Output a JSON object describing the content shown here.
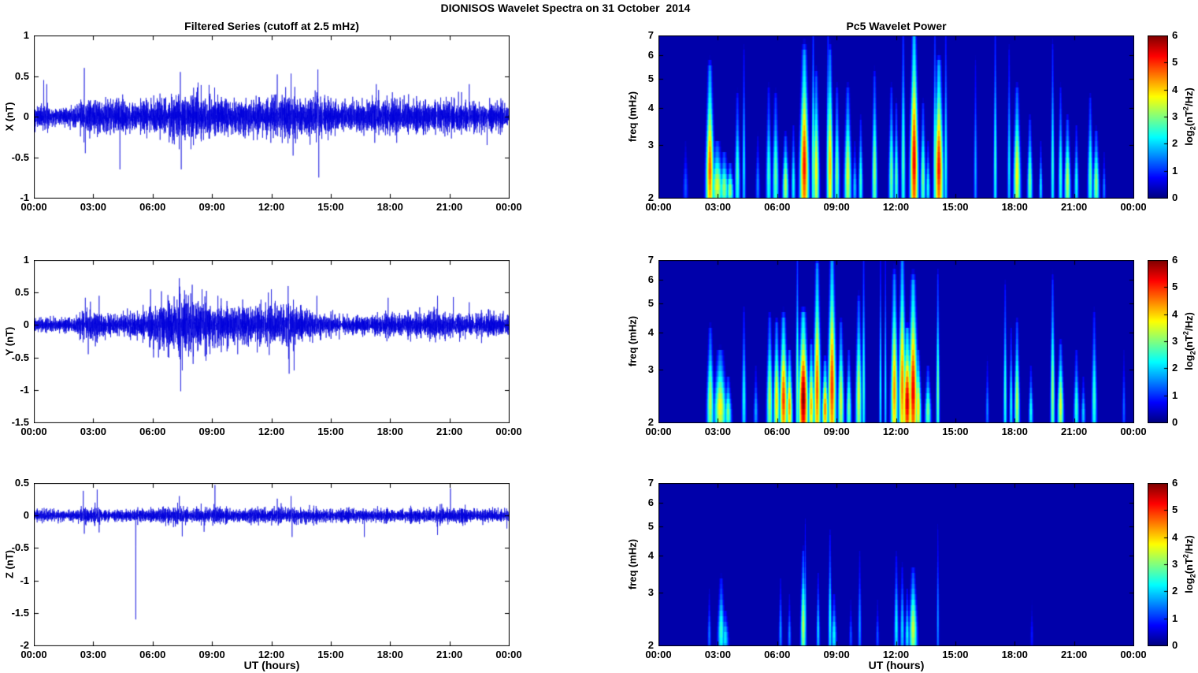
{
  "figure": {
    "title": "DIONISOS Wavelet Spectra on 31 October  2014"
  },
  "titles": {
    "left_column": "Filtered Series (cutoff at 2.5 mHz)",
    "right_column": "Pc5 Wavelet Power"
  },
  "axes": {
    "xlabel": "UT (hours)",
    "x_tick_labels": [
      "00:00",
      "03:00",
      "06:00",
      "09:00",
      "12:00",
      "15:00",
      "18:00",
      "21:00",
      "00:00"
    ],
    "x_tick_hours": [
      0,
      3,
      6,
      9,
      12,
      15,
      18,
      21,
      24
    ],
    "x_range_hours": [
      0,
      24
    ]
  },
  "colorbar": {
    "colormap": "jet",
    "tick_labels": [
      "6",
      "5",
      "4",
      "3",
      "2",
      "1",
      "0"
    ],
    "tick_values": [
      6,
      5,
      4,
      3,
      2,
      1,
      0
    ],
    "range": [
      0,
      6
    ],
    "label_parts": {
      "pre": "log",
      "sub": "2",
      "mid": "(nT",
      "sup": "2",
      "post": "/Hz)"
    }
  },
  "chart_data": {
    "x_series": {
      "type": "line",
      "ylabel": "X (nT)",
      "ylim": [
        -1,
        1
      ],
      "ytick_labels": [
        "1",
        "0.5",
        "0",
        "-0.5",
        "-1"
      ],
      "ytick_values": [
        1,
        0.5,
        0,
        -0.5,
        -1
      ],
      "line_color": "#0000DC",
      "seed": 101,
      "envelope_fields": [
        "hour",
        "typical_amplitude_nT"
      ],
      "envelope": [
        [
          0,
          0.09
        ],
        [
          0.5,
          0.12
        ],
        [
          1,
          0.08
        ],
        [
          2,
          0.08
        ],
        [
          2.4,
          0.16
        ],
        [
          3,
          0.15
        ],
        [
          3.5,
          0.14
        ],
        [
          4.3,
          0.14
        ],
        [
          5,
          0.12
        ],
        [
          5.6,
          0.14
        ],
        [
          6.5,
          0.16
        ],
        [
          7.1,
          0.19
        ],
        [
          7.5,
          0.2
        ],
        [
          8,
          0.17
        ],
        [
          9,
          0.17
        ],
        [
          9.7,
          0.15
        ],
        [
          10.5,
          0.15
        ],
        [
          11.3,
          0.16
        ],
        [
          12,
          0.16
        ],
        [
          12.7,
          0.19
        ],
        [
          13.2,
          0.18
        ],
        [
          13.8,
          0.15
        ],
        [
          14.3,
          0.19
        ],
        [
          15,
          0.13
        ],
        [
          16,
          0.12
        ],
        [
          17,
          0.15
        ],
        [
          17.8,
          0.16
        ],
        [
          18.5,
          0.14
        ],
        [
          19.5,
          0.13
        ],
        [
          20.5,
          0.14
        ],
        [
          21.5,
          0.13
        ],
        [
          22.5,
          0.13
        ],
        [
          23.5,
          0.12
        ],
        [
          24,
          0.12
        ]
      ],
      "spike_fields": [
        "hour",
        "value_nT"
      ],
      "spikes": [
        [
          0.5,
          0.45
        ],
        [
          0.65,
          0.4
        ],
        [
          2.55,
          0.6
        ],
        [
          2.6,
          -0.45
        ],
        [
          4.35,
          -0.65
        ],
        [
          7.4,
          0.55
        ],
        [
          7.45,
          -0.65
        ],
        [
          8.3,
          0.42
        ],
        [
          12.3,
          0.52
        ],
        [
          13.0,
          0.53
        ],
        [
          13.1,
          -0.48
        ],
        [
          14.35,
          0.58
        ],
        [
          14.4,
          -0.75
        ],
        [
          17.3,
          0.4
        ],
        [
          22.0,
          0.4
        ],
        [
          22.9,
          -0.35
        ]
      ]
    },
    "y_series": {
      "type": "line",
      "ylabel": "Y (nT)",
      "ylim": [
        -1.5,
        1
      ],
      "ytick_labels": [
        "1",
        "0.5",
        "0",
        "-0.5",
        "-1",
        "-1.5"
      ],
      "ytick_values": [
        1,
        0.5,
        0,
        -0.5,
        -1,
        -1.5
      ],
      "line_color": "#0000DC",
      "seed": 202,
      "envelope": [
        [
          0,
          0.07
        ],
        [
          2,
          0.07
        ],
        [
          2.5,
          0.16
        ],
        [
          3.2,
          0.17
        ],
        [
          3.8,
          0.12
        ],
        [
          4.5,
          0.12
        ],
        [
          5.2,
          0.15
        ],
        [
          5.8,
          0.18
        ],
        [
          6.3,
          0.23
        ],
        [
          7,
          0.27
        ],
        [
          7.4,
          0.3
        ],
        [
          8,
          0.28
        ],
        [
          8.6,
          0.24
        ],
        [
          9.3,
          0.21
        ],
        [
          10,
          0.2
        ],
        [
          11,
          0.19
        ],
        [
          11.8,
          0.21
        ],
        [
          12.5,
          0.23
        ],
        [
          13,
          0.24
        ],
        [
          13.5,
          0.16
        ],
        [
          14.2,
          0.14
        ],
        [
          15,
          0.1
        ],
        [
          16,
          0.09
        ],
        [
          17,
          0.1
        ],
        [
          17.8,
          0.14
        ],
        [
          18.5,
          0.11
        ],
        [
          19.5,
          0.13
        ],
        [
          20.3,
          0.15
        ],
        [
          21,
          0.14
        ],
        [
          21.8,
          0.13
        ],
        [
          23,
          0.12
        ],
        [
          24,
          0.12
        ]
      ],
      "spikes": [
        [
          2.6,
          0.42
        ],
        [
          2.75,
          -0.45
        ],
        [
          3.3,
          0.45
        ],
        [
          5.9,
          0.55
        ],
        [
          6.05,
          -0.5
        ],
        [
          6.3,
          -0.5
        ],
        [
          6.45,
          0.52
        ],
        [
          7.35,
          0.72
        ],
        [
          7.42,
          -1.02
        ],
        [
          7.5,
          -0.7
        ],
        [
          8.0,
          0.62
        ],
        [
          8.05,
          -0.6
        ],
        [
          8.5,
          0.55
        ],
        [
          8.7,
          -0.55
        ],
        [
          9.3,
          0.45
        ],
        [
          10.3,
          -0.45
        ],
        [
          11.85,
          0.5
        ],
        [
          12.0,
          0.55
        ],
        [
          12.85,
          0.6
        ],
        [
          12.9,
          -0.75
        ],
        [
          13.15,
          -0.7
        ],
        [
          14.3,
          0.45
        ],
        [
          17.9,
          0.42
        ],
        [
          20.4,
          0.45
        ],
        [
          21.2,
          0.43
        ],
        [
          22.0,
          0.35
        ]
      ]
    },
    "z_series": {
      "type": "line",
      "ylabel": "Z (nT)",
      "ylim": [
        -2,
        0.5
      ],
      "ytick_labels": [
        "0.5",
        "0",
        "-0.5",
        "-1",
        "-1.5",
        "-2"
      ],
      "ytick_values": [
        0.5,
        0,
        -0.5,
        -1,
        -1.5,
        -2
      ],
      "line_color": "#0000DC",
      "seed": 303,
      "envelope": [
        [
          0,
          0.06
        ],
        [
          2.3,
          0.06
        ],
        [
          2.5,
          0.1
        ],
        [
          2.8,
          0.07
        ],
        [
          3.1,
          0.09
        ],
        [
          3.5,
          0.07
        ],
        [
          5,
          0.06
        ],
        [
          6,
          0.07
        ],
        [
          7.2,
          0.1
        ],
        [
          7.6,
          0.09
        ],
        [
          8,
          0.07
        ],
        [
          8.8,
          0.09
        ],
        [
          9.3,
          0.09
        ],
        [
          10,
          0.07
        ],
        [
          12,
          0.08
        ],
        [
          13,
          0.1
        ],
        [
          13.5,
          0.08
        ],
        [
          15,
          0.07
        ],
        [
          17,
          0.07
        ],
        [
          19,
          0.08
        ],
        [
          20.5,
          0.08
        ],
        [
          22,
          0.07
        ],
        [
          24,
          0.07
        ]
      ],
      "spikes": [
        [
          2.5,
          0.38
        ],
        [
          2.55,
          -0.28
        ],
        [
          3.2,
          0.4
        ],
        [
          3.3,
          -0.26
        ],
        [
          5.15,
          -1.6
        ],
        [
          7.35,
          0.3
        ],
        [
          7.5,
          -0.32
        ],
        [
          8.6,
          -0.25
        ],
        [
          9.15,
          0.47
        ],
        [
          12.3,
          0.26
        ],
        [
          13.0,
          0.3
        ],
        [
          13.05,
          -0.33
        ],
        [
          16.7,
          -0.33
        ],
        [
          20.4,
          -0.3
        ],
        [
          21.05,
          0.42
        ],
        [
          23.9,
          -0.2
        ]
      ]
    },
    "x_wavelet": {
      "type": "heatmap",
      "ylabel": "freq (mHz)",
      "yscale": "log",
      "ylim_mHz": [
        2,
        7
      ],
      "ytick_labels": [
        "7",
        "6",
        "5",
        "4",
        "3",
        "2"
      ],
      "ytick_values": [
        7,
        6,
        5,
        4,
        3,
        2
      ],
      "power_range_log2": [
        0,
        6
      ],
      "background_floor_log2": 0.25,
      "plume_fields": [
        "hour",
        "freq_top_mHz",
        "peak_log2_power",
        "halfwidth_minutes"
      ],
      "plumes": [
        [
          1.35,
          3.0,
          1.3,
          6
        ],
        [
          2.58,
          5.3,
          4.8,
          9
        ],
        [
          2.95,
          3.0,
          3.6,
          13
        ],
        [
          3.3,
          2.8,
          3.2,
          10
        ],
        [
          3.6,
          2.6,
          3.2,
          8
        ],
        [
          3.97,
          4.3,
          2.7,
          6
        ],
        [
          4.3,
          6.0,
          2.2,
          4
        ],
        [
          5.0,
          3.2,
          1.6,
          5
        ],
        [
          5.55,
          4.5,
          2.6,
          6
        ],
        [
          5.9,
          4.3,
          2.9,
          7
        ],
        [
          6.4,
          3.2,
          3.4,
          7
        ],
        [
          6.8,
          3.4,
          2.4,
          5
        ],
        [
          7.35,
          6.0,
          5.2,
          10
        ],
        [
          7.8,
          7.0,
          3.0,
          4
        ],
        [
          7.95,
          5.0,
          3.8,
          7
        ],
        [
          8.55,
          7.0,
          2.8,
          4
        ],
        [
          8.65,
          6.0,
          4.2,
          7
        ],
        [
          9.0,
          4.5,
          3.0,
          6
        ],
        [
          9.55,
          4.5,
          3.6,
          8
        ],
        [
          9.9,
          3.0,
          2.0,
          5
        ],
        [
          10.2,
          3.6,
          2.6,
          5
        ],
        [
          10.9,
          5.0,
          3.2,
          6
        ],
        [
          11.75,
          4.5,
          3.0,
          6
        ],
        [
          12.0,
          4.0,
          2.8,
          5
        ],
        [
          12.35,
          7.0,
          2.8,
          5
        ],
        [
          12.9,
          7.0,
          5.4,
          9
        ],
        [
          13.35,
          4.0,
          3.0,
          6
        ],
        [
          13.6,
          3.0,
          2.4,
          5
        ],
        [
          13.95,
          7.0,
          2.8,
          4
        ],
        [
          14.15,
          5.5,
          5.2,
          10
        ],
        [
          14.5,
          7.0,
          2.4,
          4
        ],
        [
          16.0,
          5.5,
          1.8,
          4
        ],
        [
          17.0,
          7.0,
          2.6,
          4
        ],
        [
          17.7,
          6.0,
          2.2,
          4
        ],
        [
          18.1,
          4.5,
          3.8,
          8
        ],
        [
          18.75,
          3.6,
          3.0,
          6
        ],
        [
          19.3,
          3.0,
          2.2,
          4
        ],
        [
          19.9,
          6.2,
          2.6,
          4
        ],
        [
          20.3,
          4.5,
          2.6,
          5
        ],
        [
          20.65,
          3.6,
          3.4,
          7
        ],
        [
          21.1,
          3.4,
          2.4,
          5
        ],
        [
          21.8,
          4.2,
          2.8,
          6
        ],
        [
          22.1,
          3.3,
          3.2,
          7
        ],
        [
          22.5,
          2.8,
          1.6,
          4
        ]
      ]
    },
    "y_wavelet": {
      "type": "heatmap",
      "ylabel": "freq (mHz)",
      "yscale": "log",
      "ylim_mHz": [
        2,
        7
      ],
      "ytick_labels": [
        "7",
        "6",
        "5",
        "4",
        "3",
        "2"
      ],
      "ytick_values": [
        7,
        6,
        5,
        4,
        3,
        2
      ],
      "power_range_log2": [
        0,
        6
      ],
      "background_floor_log2": 0.25,
      "plume_fields": [
        "hour",
        "freq_top_mHz",
        "peak_log2_power",
        "halfwidth_minutes"
      ],
      "plumes": [
        [
          2.6,
          4.0,
          3.4,
          8
        ],
        [
          3.1,
          3.4,
          3.8,
          14
        ],
        [
          3.5,
          2.8,
          3.0,
          8
        ],
        [
          4.3,
          4.6,
          2.4,
          5
        ],
        [
          4.9,
          3.0,
          1.8,
          5
        ],
        [
          5.6,
          4.4,
          3.4,
          7
        ],
        [
          5.95,
          4.2,
          4.0,
          7
        ],
        [
          6.3,
          4.4,
          5.0,
          9
        ],
        [
          6.6,
          3.4,
          4.4,
          7
        ],
        [
          7.0,
          7.0,
          3.0,
          4
        ],
        [
          7.3,
          4.5,
          6.0,
          11
        ],
        [
          7.7,
          3.6,
          4.2,
          7
        ],
        [
          8.0,
          6.5,
          4.8,
          8
        ],
        [
          8.4,
          3.2,
          4.6,
          7
        ],
        [
          8.75,
          7.0,
          5.0,
          9
        ],
        [
          9.2,
          4.2,
          3.6,
          7
        ],
        [
          9.6,
          3.4,
          3.0,
          6
        ],
        [
          10.1,
          5.0,
          3.6,
          7
        ],
        [
          10.35,
          7.0,
          2.6,
          4
        ],
        [
          11.2,
          7.0,
          2.4,
          3
        ],
        [
          11.45,
          7.0,
          2.2,
          3
        ],
        [
          11.9,
          6.0,
          4.4,
          8
        ],
        [
          12.3,
          7.0,
          4.6,
          8
        ],
        [
          12.55,
          4.0,
          5.6,
          10
        ],
        [
          12.85,
          5.8,
          5.4,
          10
        ],
        [
          13.1,
          3.4,
          4.0,
          7
        ],
        [
          13.6,
          3.0,
          3.0,
          7
        ],
        [
          14.1,
          6.0,
          3.0,
          4
        ],
        [
          16.6,
          3.2,
          1.6,
          4
        ],
        [
          17.5,
          5.5,
          2.6,
          4
        ],
        [
          17.8,
          4.0,
          2.4,
          4
        ],
        [
          18.1,
          4.2,
          3.4,
          6
        ],
        [
          18.8,
          3.0,
          2.4,
          5
        ],
        [
          19.9,
          5.8,
          3.2,
          5
        ],
        [
          20.3,
          3.6,
          3.6,
          7
        ],
        [
          21.1,
          3.4,
          2.6,
          6
        ],
        [
          21.45,
          2.8,
          2.0,
          5
        ],
        [
          22.0,
          4.5,
          2.6,
          6
        ],
        [
          23.5,
          3.4,
          1.4,
          4
        ]
      ]
    },
    "z_wavelet": {
      "type": "heatmap",
      "ylabel": "freq (mHz)",
      "yscale": "log",
      "ylim_mHz": [
        2,
        7
      ],
      "ytick_labels": [
        "7",
        "6",
        "5",
        "4",
        "3",
        "2"
      ],
      "ytick_values": [
        7,
        6,
        5,
        4,
        3,
        2
      ],
      "power_range_log2": [
        0,
        6
      ],
      "background_floor_log2": 0.25,
      "plume_fields": [
        "hour",
        "freq_top_mHz",
        "peak_log2_power",
        "halfwidth_minutes"
      ],
      "plumes": [
        [
          2.55,
          3.0,
          1.5,
          4
        ],
        [
          3.15,
          3.3,
          2.6,
          8
        ],
        [
          3.35,
          2.6,
          2.2,
          8
        ],
        [
          6.15,
          3.3,
          1.7,
          4
        ],
        [
          6.6,
          2.9,
          1.6,
          4
        ],
        [
          7.3,
          4.0,
          3.4,
          6
        ],
        [
          7.4,
          5.0,
          2.0,
          3
        ],
        [
          8.05,
          3.4,
          2.1,
          4
        ],
        [
          8.65,
          4.6,
          2.4,
          4
        ],
        [
          8.85,
          2.9,
          2.3,
          6
        ],
        [
          9.7,
          2.8,
          1.3,
          4
        ],
        [
          10.15,
          4.0,
          1.7,
          4
        ],
        [
          11.05,
          2.8,
          1.3,
          4
        ],
        [
          12.0,
          3.9,
          2.3,
          5
        ],
        [
          12.3,
          3.6,
          2.1,
          5
        ],
        [
          12.55,
          3.0,
          2.3,
          5
        ],
        [
          12.85,
          3.5,
          3.5,
          9
        ],
        [
          14.1,
          4.8,
          1.7,
          3
        ],
        [
          18.85,
          2.8,
          0.9,
          4
        ]
      ]
    }
  }
}
